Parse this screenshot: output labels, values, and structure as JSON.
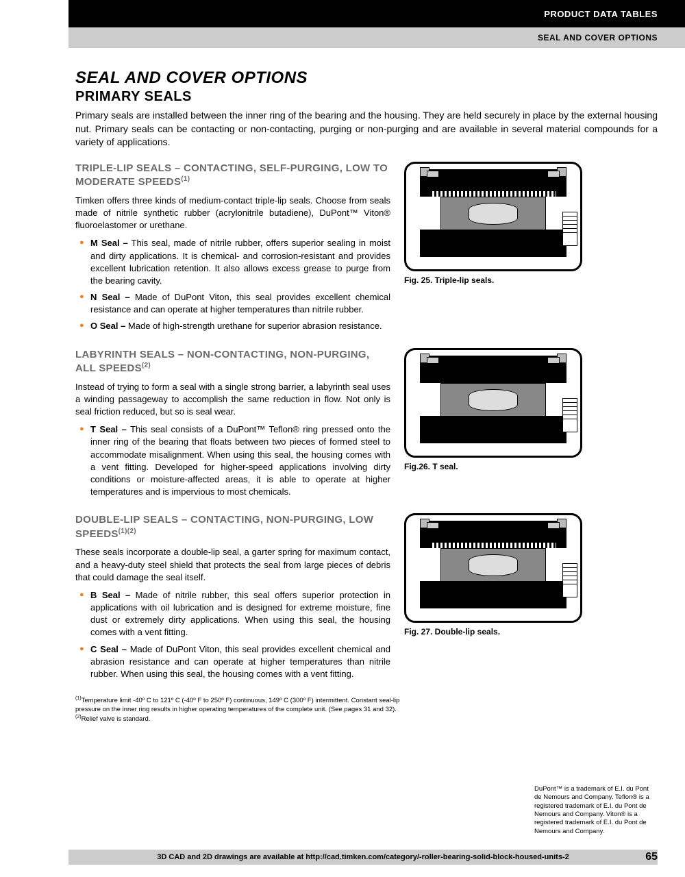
{
  "header": {
    "topBar": "PRODUCT DATA TABLES",
    "subBar": "SEAL AND COVER OPTIONS"
  },
  "title": {
    "main": "SEAL AND COVER OPTIONS",
    "sub": "PRIMARY SEALS"
  },
  "intro": "Primary seals are installed between the inner ring of the bearing and the housing. They are held securely in place by the external housing nut. Primary seals can be contacting or non-contacting, purging or non-purging and are available in several material compounds for a variety of applications.",
  "sections": [
    {
      "heading": "TRIPLE-LIP SEALS – CONTACTING, SELF-PURGING, LOW TO MODERATE SPEEDS",
      "sup": "(1)",
      "body": "Timken offers three kinds of medium-contact triple-lip seals. Choose from seals made of nitrile synthetic rubber (acrylonitrile butadiene), DuPont™ Viton® fluoroelastomer or urethane.",
      "bullets": [
        {
          "name": "M Seal –",
          "text": " This seal, made of nitrile rubber, offers superior sealing in moist and dirty applications. It is chemical- and corrosion-resistant and provides excellent lubrication retention. It also allows excess grease to purge from the bearing cavity."
        },
        {
          "name": "N Seal –",
          "text": " Made of DuPont Viton, this seal provides excellent chemical resistance and can operate at higher temperatures than nitrile rubber."
        },
        {
          "name": "O Seal –",
          "text": " Made of high-strength urethane for superior abrasion resistance."
        }
      ],
      "figCaption": "Fig. 25. Triple-lip seals."
    },
    {
      "heading": "LABYRINTH SEALS – NON-CONTACTING, NON-PURGING, ALL SPEEDS",
      "sup": "(2)",
      "body": "Instead of trying to form a seal with a single strong barrier, a labyrinth seal uses a winding passageway to accomplish the same reduction in flow. Not only is seal friction reduced, but so is seal wear.",
      "bullets": [
        {
          "name": "T Seal –",
          "text": " This seal consists of a DuPont™ Teflon® ring pressed onto the inner ring of the bearing that floats between two pieces of formed steel to accommodate misalignment. When using this seal, the housing comes with a vent fitting. Developed for higher-speed applications involving dirty conditions or moisture-affected areas, it is able to operate at higher temperatures and is impervious to most chemicals."
        }
      ],
      "figCaption": "Fig.26. T seal."
    },
    {
      "heading": "DOUBLE-LIP SEALS – CONTACTING, NON-PURGING, LOW SPEEDS",
      "sup": "(1)(2)",
      "body": "These seals incorporate a double-lip seal, a garter spring for maximum contact, and a heavy-duty steel shield that protects the seal from large pieces of debris that could damage the seal itself.",
      "bullets": [
        {
          "name": "B Seal –",
          "text": " Made of nitrile rubber, this seal offers superior protection in applications with oil lubrication and is designed for extreme moisture, fine dust or extremely dirty applications. When using this seal, the housing comes with a vent fitting."
        },
        {
          "name": "C Seal –",
          "text": " Made of DuPont Viton, this seal provides excellent chemical and abrasion resistance and can operate at higher temperatures than nitrile rubber. When using this seal, the housing comes with a vent fitting."
        }
      ],
      "figCaption": "Fig. 27. Double-lip seals."
    }
  ],
  "footnotes": {
    "f1": "Temperature limit -40º C to 121º C (-40º F to 250º F) continuous, 149º C (300º F) intermittent. Constant seal-lip pressure on the inner ring results in higher operating temperatures of the complete unit. (See pages 31 and 32).",
    "f2": "Relief valve is standard."
  },
  "trademark": "DuPont™ is a trademark of E.I. du Pont de Nemours and Company. Teflon® is a registered trademark of E.I. du Pont de Nemours and Company. Viton® is a registered trademark of E.I. du Pont de Nemours and Company.",
  "footer": "3D CAD and 2D drawings are available at http://cad.timken.com/category/-roller-bearing-solid-block-housed-units-2",
  "pageNum": "65",
  "colors": {
    "bullet": "#f47b20",
    "sectionHeading": "#6b6b6b"
  }
}
